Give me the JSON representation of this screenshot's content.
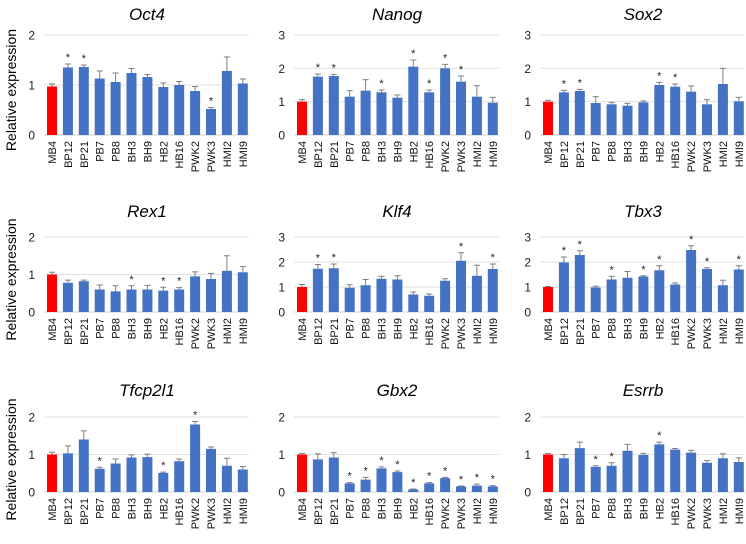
{
  "chart_data": {
    "type": "bar",
    "ylabel": "Relative expression",
    "categories": [
      "MB4",
      "BP12",
      "BP21",
      "PB7",
      "PB8",
      "BH3",
      "BH9",
      "HB2",
      "HB16",
      "PWK2",
      "PWK3",
      "HMI2",
      "HMI9"
    ],
    "colors": {
      "reference": "#ff0000",
      "samples": "#4472c4",
      "grid": "#e0e0e0",
      "error": "#7f7f7f"
    },
    "significance_marker": "*",
    "grid": true,
    "panels": [
      {
        "title": "Oct4",
        "ylim": [
          0,
          2
        ],
        "yticks": [
          "0",
          "1",
          "2"
        ],
        "values": [
          0.97,
          1.35,
          1.36,
          1.13,
          1.06,
          1.24,
          1.16,
          0.96,
          1.0,
          0.88,
          0.52,
          1.28,
          1.03
        ],
        "errors": [
          0.05,
          0.07,
          0.04,
          0.15,
          0.18,
          0.09,
          0.05,
          0.08,
          0.07,
          0.09,
          0.03,
          0.28,
          0.09
        ],
        "significant": [
          false,
          true,
          true,
          false,
          false,
          false,
          false,
          false,
          false,
          false,
          true,
          false,
          false
        ]
      },
      {
        "title": "Nanog",
        "ylim": [
          0,
          3
        ],
        "yticks": [
          "0",
          "1",
          "2",
          "3"
        ],
        "values": [
          1.0,
          1.75,
          1.77,
          1.15,
          1.33,
          1.28,
          1.12,
          2.05,
          1.28,
          2.0,
          1.6,
          1.15,
          0.97
        ],
        "errors": [
          0.06,
          0.08,
          0.05,
          0.18,
          0.33,
          0.07,
          0.08,
          0.2,
          0.07,
          0.12,
          0.17,
          0.33,
          0.16
        ],
        "significant": [
          false,
          true,
          true,
          false,
          false,
          true,
          false,
          true,
          true,
          true,
          true,
          false,
          false
        ]
      },
      {
        "title": "Sox2",
        "ylim": [
          0,
          3
        ],
        "yticks": [
          "0",
          "1",
          "2",
          "3"
        ],
        "values": [
          1.0,
          1.28,
          1.32,
          0.96,
          0.92,
          0.88,
          0.98,
          1.5,
          1.45,
          1.3,
          0.92,
          1.53,
          1.01
        ],
        "errors": [
          0.04,
          0.06,
          0.05,
          0.19,
          0.06,
          0.07,
          0.04,
          0.08,
          0.08,
          0.17,
          0.14,
          0.47,
          0.12
        ],
        "significant": [
          false,
          true,
          true,
          false,
          false,
          false,
          false,
          true,
          true,
          false,
          false,
          false,
          false
        ]
      },
      {
        "title": "Rex1",
        "ylim": [
          0,
          2
        ],
        "yticks": [
          "0",
          "1",
          "2"
        ],
        "values": [
          1.0,
          0.78,
          0.82,
          0.6,
          0.55,
          0.6,
          0.6,
          0.57,
          0.6,
          0.95,
          0.88,
          1.1,
          1.06
        ],
        "errors": [
          0.06,
          0.07,
          0.03,
          0.12,
          0.15,
          0.1,
          0.11,
          0.09,
          0.05,
          0.12,
          0.15,
          0.4,
          0.15
        ],
        "significant": [
          false,
          false,
          false,
          false,
          false,
          true,
          false,
          true,
          true,
          false,
          false,
          false,
          false
        ]
      },
      {
        "title": "Klf4",
        "ylim": [
          0,
          3
        ],
        "yticks": [
          "0",
          "1",
          "2",
          "3"
        ],
        "values": [
          1.0,
          1.73,
          1.75,
          0.97,
          1.07,
          1.33,
          1.3,
          0.7,
          0.65,
          1.25,
          2.05,
          1.45,
          1.72
        ],
        "errors": [
          0.1,
          0.17,
          0.17,
          0.12,
          0.23,
          0.1,
          0.15,
          0.1,
          0.07,
          0.08,
          0.32,
          0.42,
          0.2
        ],
        "significant": [
          false,
          true,
          true,
          false,
          false,
          false,
          false,
          false,
          false,
          false,
          true,
          false,
          true
        ]
      },
      {
        "title": "Tbx3",
        "ylim": [
          0,
          3
        ],
        "yticks": [
          "0",
          "1",
          "2",
          "3"
        ],
        "values": [
          1.0,
          1.98,
          2.28,
          0.98,
          1.3,
          1.37,
          1.42,
          1.67,
          1.1,
          2.48,
          1.72,
          1.07,
          1.7
        ],
        "errors": [
          0.02,
          0.22,
          0.17,
          0.05,
          0.13,
          0.25,
          0.03,
          0.18,
          0.06,
          0.17,
          0.05,
          0.2,
          0.15
        ],
        "significant": [
          false,
          true,
          true,
          false,
          true,
          false,
          true,
          true,
          false,
          true,
          true,
          false,
          true
        ]
      },
      {
        "title": "Tfcp2l1",
        "ylim": [
          0,
          2
        ],
        "yticks": [
          "0",
          "1",
          "2"
        ],
        "values": [
          1.0,
          1.03,
          1.4,
          0.62,
          0.76,
          0.92,
          0.93,
          0.51,
          0.82,
          1.8,
          1.15,
          0.7,
          0.6
        ],
        "errors": [
          0.06,
          0.2,
          0.23,
          0.04,
          0.12,
          0.07,
          0.08,
          0.02,
          0.06,
          0.08,
          0.05,
          0.2,
          0.08
        ],
        "significant": [
          false,
          false,
          false,
          true,
          false,
          false,
          false,
          true,
          false,
          true,
          false,
          false,
          false
        ]
      },
      {
        "title": "Gbx2",
        "ylim": [
          0,
          2
        ],
        "yticks": [
          "0",
          "1",
          "2"
        ],
        "values": [
          1.0,
          0.87,
          0.92,
          0.23,
          0.33,
          0.63,
          0.53,
          0.07,
          0.23,
          0.37,
          0.15,
          0.17,
          0.15
        ],
        "errors": [
          0.03,
          0.15,
          0.13,
          0.02,
          0.06,
          0.04,
          0.03,
          0.01,
          0.02,
          0.02,
          0.01,
          0.04,
          0.02
        ],
        "significant": [
          false,
          false,
          false,
          true,
          true,
          true,
          true,
          true,
          true,
          true,
          true,
          true,
          true
        ]
      },
      {
        "title": "Esrrb",
        "ylim": [
          0,
          2
        ],
        "yticks": [
          "0",
          "1",
          "2"
        ],
        "values": [
          1.0,
          0.9,
          1.17,
          0.67,
          0.7,
          1.1,
          0.99,
          1.27,
          1.13,
          1.05,
          0.78,
          0.9,
          0.8
        ],
        "errors": [
          0.03,
          0.1,
          0.16,
          0.03,
          0.08,
          0.17,
          0.04,
          0.06,
          0.03,
          0.06,
          0.06,
          0.12,
          0.11
        ],
        "significant": [
          false,
          false,
          false,
          true,
          true,
          false,
          false,
          true,
          false,
          false,
          false,
          false,
          false
        ]
      }
    ]
  }
}
